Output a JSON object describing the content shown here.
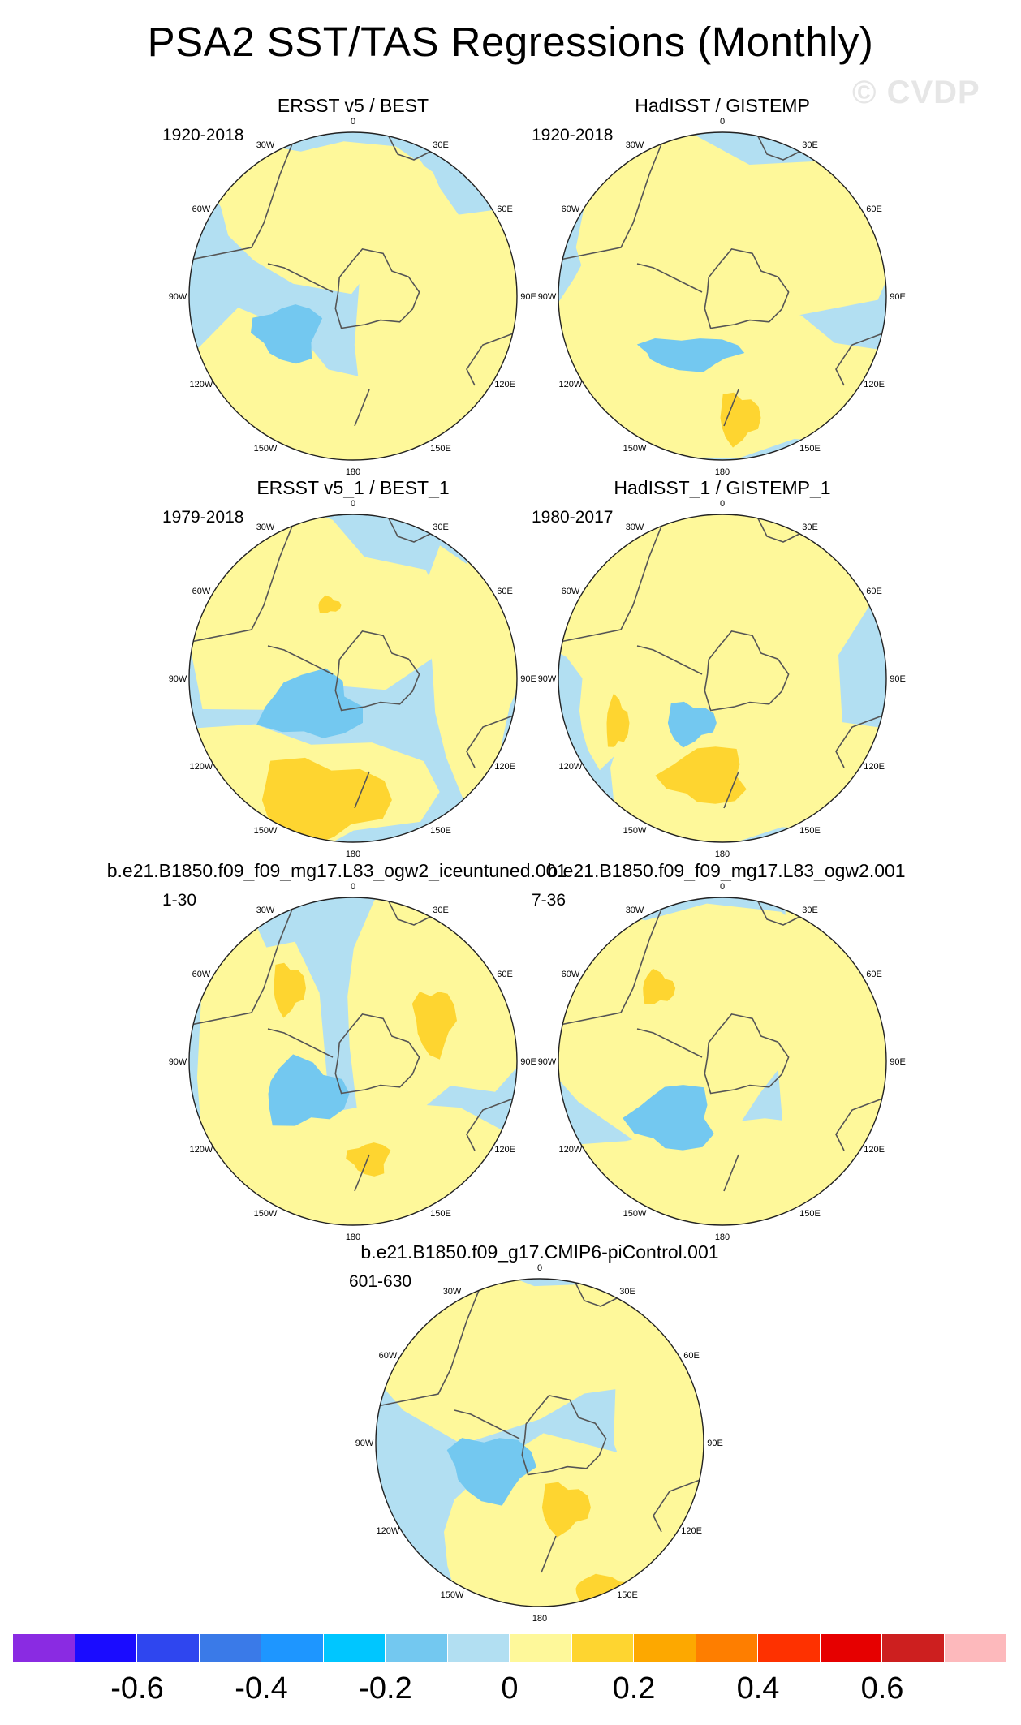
{
  "title": "PSA2 SST/TAS Regressions (Monthly)",
  "watermark": "© CVDP",
  "longitude_labels": [
    "0",
    "30E",
    "60E",
    "90E",
    "120E",
    "150E",
    "180",
    "150W",
    "120W",
    "90W",
    "60W",
    "30W"
  ],
  "panels": [
    {
      "title": "ERSST v5 / BEST",
      "period": "1920-2018"
    },
    {
      "title": "HadISST / GISTEMP",
      "period": "1920-2018"
    },
    {
      "title": "ERSST v5_1 / BEST_1",
      "period": "1979-2018"
    },
    {
      "title": "HadISST_1 / GISTEMP_1",
      "period": "1980-2017"
    },
    {
      "title": "b.e21.B1850.f09_f09_mg17.L83_ogw2_iceuntuned.001",
      "period": "1-30"
    },
    {
      "title": "b.e21.B1850.f09_f09_mg17.L83_ogw2.001",
      "period": "7-36"
    },
    {
      "title": "b.e21.B1850.f09_g17.CMIP6-piControl.001",
      "period": "601-630"
    }
  ],
  "colorbar": {
    "colors": [
      "#8a2be2",
      "#1a0cff",
      "#2f46ef",
      "#3a7ae8",
      "#1e96ff",
      "#00c6ff",
      "#73c8f0",
      "#b2dff2",
      "#fef89a",
      "#fed530",
      "#fda800",
      "#fe7e00",
      "#fe3100",
      "#e60000",
      "#cd1f1f",
      "#fdb9bc"
    ],
    "labels": [
      "-0.6",
      "-0.4",
      "-0.2",
      "0",
      "0.2",
      "0.4",
      "0.6"
    ]
  }
}
